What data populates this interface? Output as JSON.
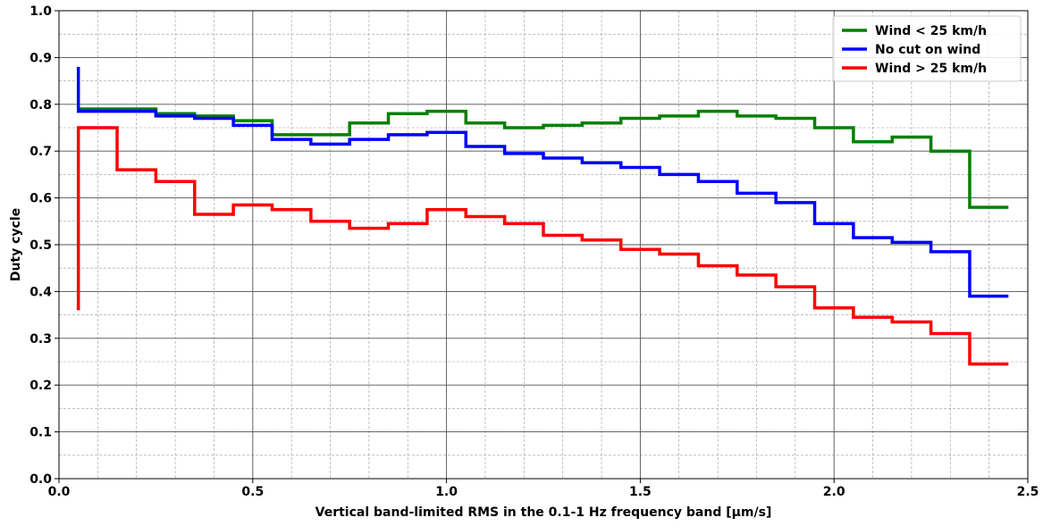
{
  "chart_data": {
    "type": "line",
    "step": true,
    "xlabel": "Vertical band-limited RMS in the 0.1-1 Hz frequency band [μm/s]",
    "ylabel": "Duty cycle",
    "xlim": [
      0.0,
      2.5
    ],
    "ylim": [
      0.0,
      1.0
    ],
    "xticks": [
      0.0,
      0.5,
      1.0,
      1.5,
      2.0,
      2.5
    ],
    "xtick_labels": [
      "0.0",
      "0.5",
      "1.0",
      "1.5",
      "2.0",
      "2.5"
    ],
    "yticks": [
      0.0,
      0.1,
      0.2,
      0.3,
      0.4,
      0.5,
      0.6,
      0.7,
      0.8,
      0.9,
      1.0
    ],
    "ytick_labels": [
      "0.0",
      "0.1",
      "0.2",
      "0.3",
      "0.4",
      "0.5",
      "0.6",
      "0.7",
      "0.8",
      "0.9",
      "1.0"
    ],
    "grid": {
      "major": true,
      "minor": true,
      "minor_x_step": 0.1,
      "minor_y_step": 0.05
    },
    "legend_position": "top-right",
    "bin_edges": [
      0.05,
      0.15,
      0.25,
      0.35,
      0.45,
      0.55,
      0.65,
      0.75,
      0.85,
      0.95,
      1.05,
      1.15,
      1.25,
      1.35,
      1.45,
      1.55,
      1.65,
      1.75,
      1.85,
      1.95,
      2.05,
      2.15,
      2.25,
      2.35,
      2.45
    ],
    "series": [
      {
        "name": "Wind < 25 km/h",
        "color": "#008000",
        "values": [
          0.79,
          0.79,
          0.78,
          0.775,
          0.765,
          0.735,
          0.735,
          0.76,
          0.78,
          0.785,
          0.76,
          0.75,
          0.755,
          0.76,
          0.77,
          0.775,
          0.785,
          0.775,
          0.77,
          0.75,
          0.72,
          0.73,
          0.7,
          0.58
        ]
      },
      {
        "name": "No cut on wind",
        "color": "#0000ff",
        "start_value": 0.88,
        "values": [
          0.785,
          0.785,
          0.775,
          0.77,
          0.755,
          0.725,
          0.715,
          0.725,
          0.735,
          0.74,
          0.71,
          0.695,
          0.685,
          0.675,
          0.665,
          0.65,
          0.635,
          0.61,
          0.59,
          0.545,
          0.515,
          0.505,
          0.485,
          0.39
        ]
      },
      {
        "name": "Wind > 25 km/h",
        "color": "#ff0000",
        "start_value": 0.36,
        "values": [
          0.75,
          0.66,
          0.635,
          0.565,
          0.585,
          0.575,
          0.55,
          0.535,
          0.545,
          0.575,
          0.56,
          0.545,
          0.52,
          0.51,
          0.49,
          0.48,
          0.455,
          0.435,
          0.41,
          0.365,
          0.345,
          0.335,
          0.31,
          0.245
        ]
      }
    ]
  }
}
